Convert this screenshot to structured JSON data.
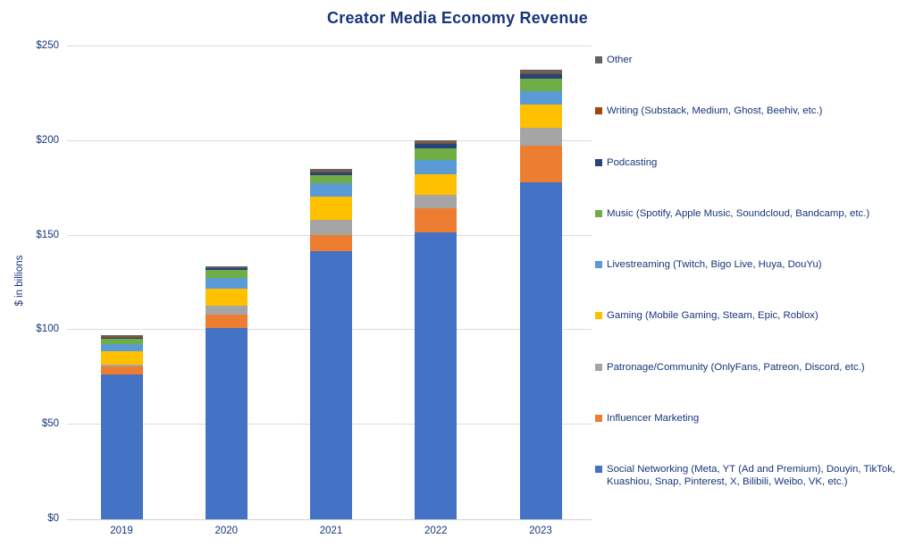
{
  "title": "Creator Media Economy Revenue",
  "colors": {
    "title_text": "#17357a",
    "axis_text": "#17357a",
    "gridline": "#dcdcdc",
    "background": "#ffffff"
  },
  "chart_data": {
    "type": "bar",
    "stacked": true,
    "title": "Creator Media Economy Revenue",
    "ylabel": "$ in billions",
    "xlabel": "",
    "categories": [
      "2019",
      "2020",
      "2021",
      "2022",
      "2023"
    ],
    "y_ticks": [
      "$0",
      "$50",
      "$100",
      "$150",
      "$200",
      "$250"
    ],
    "ylim": [
      0,
      250
    ],
    "grid": "horizontal",
    "legend_position": "right",
    "totals_approx": [
      97,
      132,
      183,
      199,
      236
    ],
    "series": [
      {
        "name": "Social Networking (Meta, YT (Ad and Premium), Douyin, TikTok, Kuashiou, Snap, Pinterest, X, Bilibili, Weibo, VK, etc.)",
        "color": "#4472C4",
        "values": [
          76.5,
          101.0,
          142.0,
          151.5,
          178.0
        ]
      },
      {
        "name": "Influencer Marketing",
        "color": "#ED7D31",
        "values": [
          4.1,
          7.4,
          8.4,
          12.9,
          19.8
        ]
      },
      {
        "name": "Patronage/Community (OnlyFans, Patreon, Discord, etc.)",
        "color": "#A5A5A5",
        "values": [
          1.3,
          4.4,
          7.8,
          7.1,
          9.3
        ]
      },
      {
        "name": "Gaming (Mobile Gaming, Steam, Epic, Roblox)",
        "color": "#FFC000",
        "values": [
          6.8,
          9.2,
          12.5,
          11.0,
          12.4
        ]
      },
      {
        "name": "Livestreaming (Twitch, Bigo Live, Huya, DouYu)",
        "color": "#5B9BD5",
        "values": [
          3.9,
          5.4,
          6.8,
          7.4,
          7.1
        ]
      },
      {
        "name": "Music (Spotify, Apple Music, Soundcloud, Bandcamp, etc.)",
        "color": "#70AD47",
        "values": [
          2.8,
          4.4,
          4.3,
          6.4,
          6.3
        ]
      },
      {
        "name": "Podcasting",
        "color": "#264478",
        "values": [
          0.6,
          0.9,
          1.7,
          2.2,
          2.5
        ]
      },
      {
        "name": "Writing (Substack, Medium, Ghost, Beehiv, etc.)",
        "color": "#9E480E",
        "values": [
          0.2,
          0.3,
          0.3,
          0.4,
          0.7
        ]
      },
      {
        "name": "Other",
        "color": "#636363",
        "values": [
          0.9,
          1.0,
          1.4,
          1.3,
          1.9
        ]
      }
    ]
  }
}
